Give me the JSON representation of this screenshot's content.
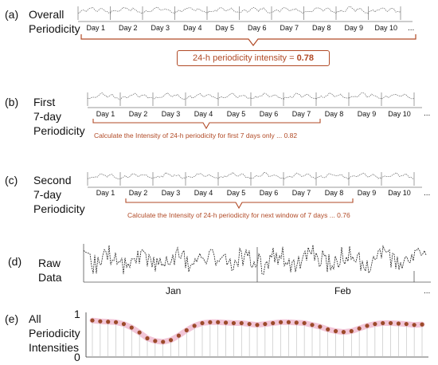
{
  "panel_a": {
    "letter": "(a)",
    "title_line1": "Overall",
    "title_line2": "Periodicity",
    "days": [
      "Day 1",
      "Day 2",
      "Day 3",
      "Day 4",
      "Day 5",
      "Day 6",
      "Day 7",
      "Day 8",
      "Day 9",
      "Day 10"
    ],
    "ellipsis": "...",
    "caption_prefix": "24-h periodicity intensity = ",
    "caption_value": "0.78"
  },
  "panel_b": {
    "letter": "(b)",
    "title_line1": "First",
    "title_line2": "7-day",
    "title_line3": "Periodicity",
    "days": [
      "Day 1",
      "Day 2",
      "Day 3",
      "Day 4",
      "Day 5",
      "Day 6",
      "Day 7",
      "Day 8",
      "Day 9",
      "Day 10"
    ],
    "ellipsis": "...",
    "note": "Calculate the Intensity of 24-h periodicity for first 7 days only ... 0.82"
  },
  "panel_c": {
    "letter": "(c)",
    "title_line1": "Second",
    "title_line2": "7-day",
    "title_line3": "Periodicity",
    "days": [
      "Day 1",
      "Day 2",
      "Day 3",
      "Day 4",
      "Day 5",
      "Day 6",
      "Day 7",
      "Day 8",
      "Day 9",
      "Day 10"
    ],
    "ellipsis": "...",
    "note": "Calculate the Intensity of 24-h periodicity for next window of 7 days ... 0.76"
  },
  "panel_d": {
    "letter": "(d)",
    "title_line1": "Raw",
    "title_line2": "Data",
    "month1": "Jan",
    "month2": "Feb",
    "ellipsis": "..."
  },
  "panel_e": {
    "letter": "(e)",
    "title_line1": "All",
    "title_line2": "Periodicity",
    "title_line3": "Intensities",
    "y_top": "1",
    "y_bottom": "0"
  },
  "colors": {
    "accent": "#b14a26",
    "dot": "#9c4a2a",
    "halo": "#f2c6d8",
    "line": "#333333"
  },
  "chart_data": {
    "type": "scatter",
    "ylim": [
      0,
      1
    ],
    "values": [
      0.82,
      0.8,
      0.79,
      0.78,
      0.74,
      0.66,
      0.55,
      0.42,
      0.36,
      0.34,
      0.38,
      0.48,
      0.6,
      0.7,
      0.76,
      0.78,
      0.78,
      0.77,
      0.76,
      0.76,
      0.74,
      0.72,
      0.74,
      0.76,
      0.78,
      0.78,
      0.77,
      0.76,
      0.72,
      0.68,
      0.62,
      0.58,
      0.56,
      0.58,
      0.64,
      0.7,
      0.74,
      0.76,
      0.76,
      0.75,
      0.74,
      0.72,
      0.73
    ]
  }
}
